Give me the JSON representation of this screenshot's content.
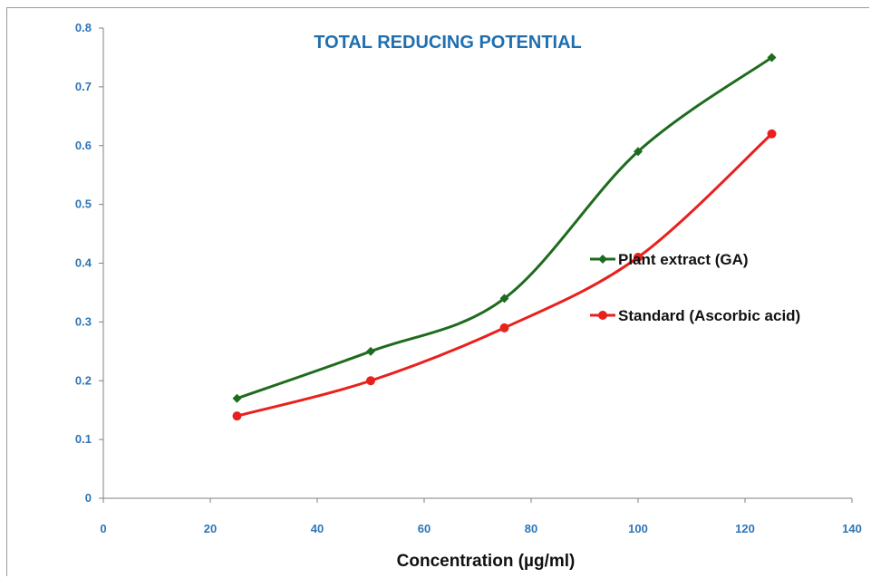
{
  "chart_data": {
    "type": "line",
    "title": "TOTAL REDUCING POTENTIAL",
    "xlabel": "Concentration  (µg/ml)",
    "ylabel": "",
    "xlim": [
      0,
      140
    ],
    "ylim": [
      0,
      0.8
    ],
    "x_ticks": [
      "0",
      "20",
      "40",
      "60",
      "80",
      "100",
      "120",
      "140"
    ],
    "y_ticks": [
      "0",
      "0.1",
      "0.2",
      "0.3",
      "0.4",
      "0.5",
      "0.6",
      "0.7",
      "0.8"
    ],
    "grid": false,
    "legend_position": "right",
    "series": [
      {
        "name": "Plant extract  (GA)",
        "color": "#1e6b1e",
        "marker": "diamond",
        "x": [
          25,
          50,
          75,
          100,
          125
        ],
        "y": [
          0.17,
          0.25,
          0.34,
          0.59,
          0.75
        ]
      },
      {
        "name": "Standard  (Ascorbic  acid)",
        "color": "#e8211d",
        "marker": "circle",
        "x": [
          25,
          50,
          75,
          100,
          125
        ],
        "y": [
          0.14,
          0.2,
          0.29,
          0.41,
          0.62
        ]
      }
    ]
  }
}
